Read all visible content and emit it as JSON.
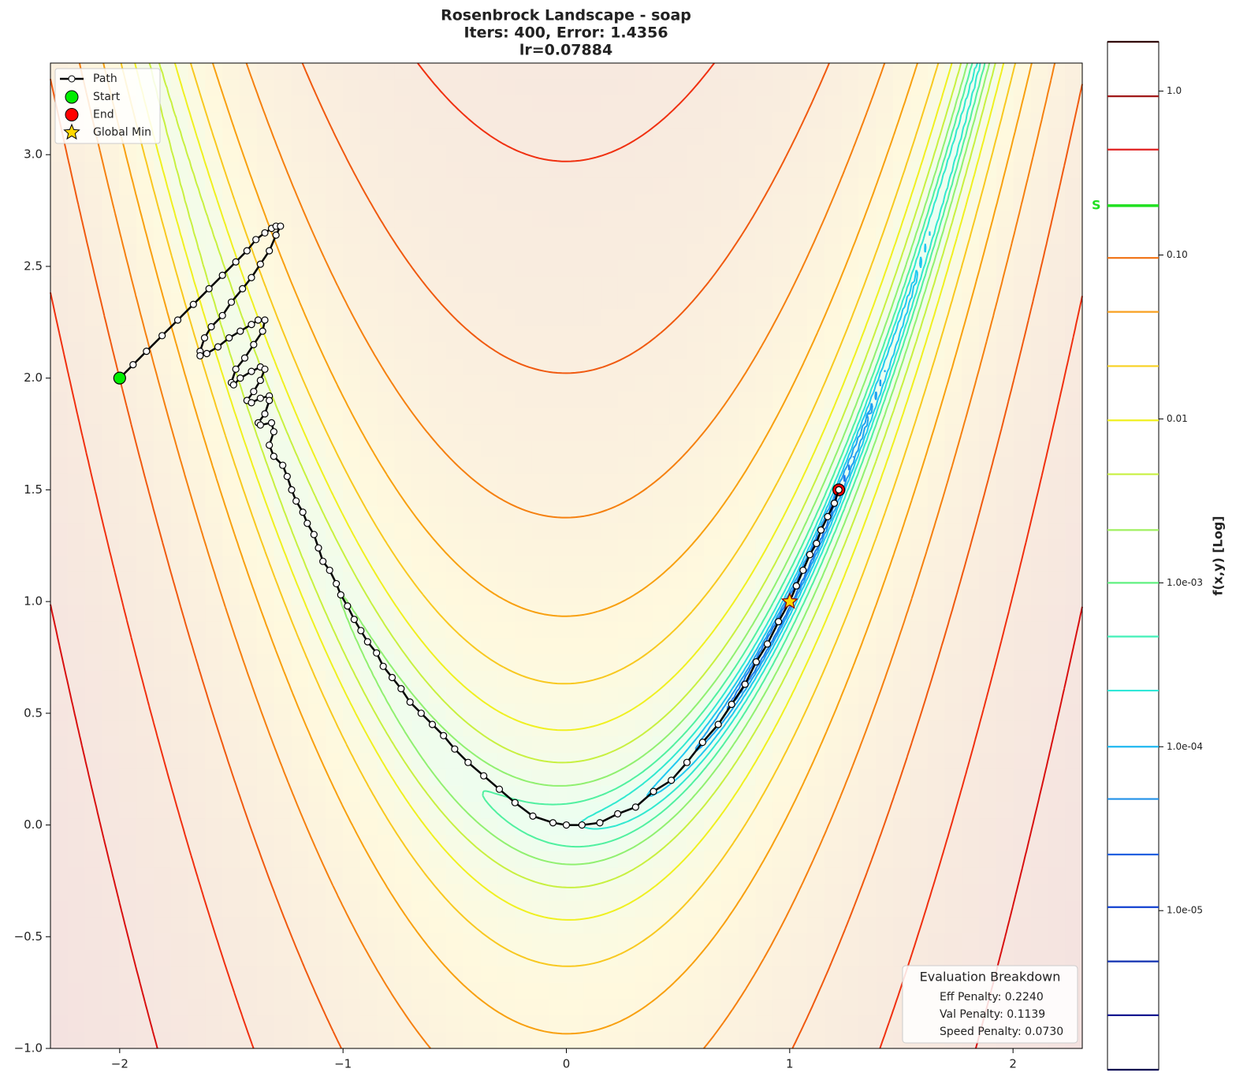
{
  "chart_data": {
    "type": "contour",
    "title": [
      "Rosenbrock Landscape - soap",
      "Iters: 400, Error: 1.4356",
      "lr=0.07884"
    ],
    "xlim": [
      -2.31,
      2.31
    ],
    "ylim": [
      -1,
      3.41
    ],
    "xticks": [
      {
        "value": -2,
        "label": "−2"
      },
      {
        "value": -1,
        "label": "−1"
      },
      0,
      1,
      2
    ],
    "yticks": [
      {
        "value": -1,
        "label": "−1.0"
      },
      {
        "value": -0.5,
        "label": "−0.5"
      },
      {
        "value": 0,
        "label": "0.0"
      },
      {
        "value": 0.5,
        "label": "0.5"
      },
      {
        "value": 1,
        "label": "1.0"
      },
      {
        "value": 1.5,
        "label": "1.5"
      },
      {
        "value": 2,
        "label": "2.0"
      },
      {
        "value": 2.5,
        "label": "2.5"
      },
      {
        "value": 3,
        "label": "3.0"
      }
    ],
    "path": {
      "name": "Path",
      "color": "#000000",
      "x": [
        -2.0,
        -1.94,
        -1.88,
        -1.81,
        -1.74,
        -1.67,
        -1.6,
        -1.54,
        -1.48,
        -1.43,
        -1.39,
        -1.35,
        -1.32,
        -1.3,
        -1.28,
        -1.3,
        -1.33,
        -1.37,
        -1.41,
        -1.45,
        -1.5,
        -1.54,
        -1.59,
        -1.62,
        -1.64,
        -1.64,
        -1.61,
        -1.56,
        -1.51,
        -1.46,
        -1.41,
        -1.38,
        -1.35,
        -1.36,
        -1.4,
        -1.44,
        -1.48,
        -1.5,
        -1.49,
        -1.46,
        -1.41,
        -1.37,
        -1.35,
        -1.37,
        -1.4,
        -1.43,
        -1.41,
        -1.37,
        -1.33,
        -1.33,
        -1.35,
        -1.38,
        -1.37,
        -1.32,
        -1.31,
        -1.33,
        -1.31,
        -1.27,
        -1.25,
        -1.23,
        -1.21,
        -1.18,
        -1.16,
        -1.13,
        -1.11,
        -1.09,
        -1.06,
        -1.03,
        -1.01,
        -0.98,
        -0.95,
        -0.92,
        -0.89,
        -0.85,
        -0.82,
        -0.78,
        -0.74,
        -0.7,
        -0.65,
        -0.6,
        -0.55,
        -0.5,
        -0.44,
        -0.37,
        -0.3,
        -0.23,
        -0.15,
        -0.06,
        0.0,
        0.07,
        0.15,
        0.23,
        0.31,
        0.39,
        0.47,
        0.54,
        0.61,
        0.68,
        0.74,
        0.8,
        0.85,
        0.9,
        0.95,
        1.0,
        1.03,
        1.06,
        1.09,
        1.12,
        1.14,
        1.17,
        1.2,
        1.22
      ],
      "y": [
        2.0,
        2.06,
        2.12,
        2.19,
        2.26,
        2.33,
        2.4,
        2.46,
        2.52,
        2.57,
        2.62,
        2.65,
        2.67,
        2.68,
        2.68,
        2.64,
        2.57,
        2.51,
        2.45,
        2.4,
        2.34,
        2.28,
        2.23,
        2.18,
        2.12,
        2.1,
        2.11,
        2.14,
        2.18,
        2.21,
        2.24,
        2.26,
        2.26,
        2.21,
        2.15,
        2.09,
        2.04,
        1.98,
        1.97,
        2.0,
        2.03,
        2.05,
        2.04,
        1.99,
        1.94,
        1.9,
        1.89,
        1.91,
        1.92,
        1.9,
        1.84,
        1.8,
        1.79,
        1.8,
        1.76,
        1.7,
        1.65,
        1.61,
        1.56,
        1.5,
        1.45,
        1.4,
        1.35,
        1.3,
        1.24,
        1.18,
        1.14,
        1.08,
        1.03,
        0.98,
        0.92,
        0.87,
        0.82,
        0.77,
        0.71,
        0.66,
        0.61,
        0.55,
        0.5,
        0.45,
        0.4,
        0.34,
        0.28,
        0.22,
        0.16,
        0.1,
        0.04,
        0.01,
        0.0,
        0.0,
        0.01,
        0.05,
        0.08,
        0.15,
        0.2,
        0.28,
        0.37,
        0.45,
        0.54,
        0.63,
        0.73,
        0.81,
        0.91,
        1.0,
        1.07,
        1.14,
        1.21,
        1.26,
        1.32,
        1.38,
        1.44,
        1.5
      ]
    },
    "points": [
      {
        "name": "Start",
        "x": -2,
        "y": 2,
        "color": "#00ee00",
        "marker": "circle"
      },
      {
        "name": "End",
        "x": 1.22,
        "y": 1.5,
        "color": "#ff0000",
        "marker": "circle"
      },
      {
        "name": "Global Min",
        "x": 1,
        "y": 1,
        "color": "#ffd700",
        "marker": "star"
      }
    ],
    "legend": "upper left",
    "colorbar": {
      "label": "f(x,y) [Log]",
      "log": true,
      "ylim": [
        1.07e-06,
        2.0
      ],
      "yticks": [
        {
          "value": 1,
          "label": "1.0"
        },
        {
          "value": 0.1,
          "label": "0.10"
        },
        {
          "value": 0.01,
          "label": "0.01"
        },
        {
          "value": 0.001,
          "label": "1.0e-03"
        },
        {
          "value": 0.0001,
          "label": "1.0e-04"
        },
        {
          "value": 1e-05,
          "label": "1.0e-05"
        }
      ],
      "levels": [
        2.0,
        0.93,
        0.44,
        0.2,
        0.096,
        0.045,
        0.021,
        0.0098,
        0.0046,
        0.0021,
        0.001,
        0.00047,
        0.00022,
        0.0001,
        4.8e-05,
        2.2e-05,
        1.05e-05,
        4.9e-06,
        2.3e-06,
        1.07e-06
      ],
      "level_colors": [
        "#300000",
        "#a01818",
        "#e02020",
        "#20e020",
        "#f07010",
        "#f8a020",
        "#f8d020",
        "#f0f020",
        "#c8f040",
        "#a0f060",
        "#60f080",
        "#40f0b8",
        "#30e8d8",
        "#20b8f0",
        "#2090e8",
        "#2060e0",
        "#1040d0",
        "#1030b0",
        "#101890",
        "#000050"
      ],
      "marker_label": "S",
      "marker_label_color": "#20e020",
      "marker_level": 3
    },
    "annotation": {
      "title": "Evaluation Breakdown",
      "lines": [
        "Eff Penalty: 0.2240",
        "Val Penalty: 0.1139",
        "Speed Penalty: 0.0730"
      ]
    }
  }
}
